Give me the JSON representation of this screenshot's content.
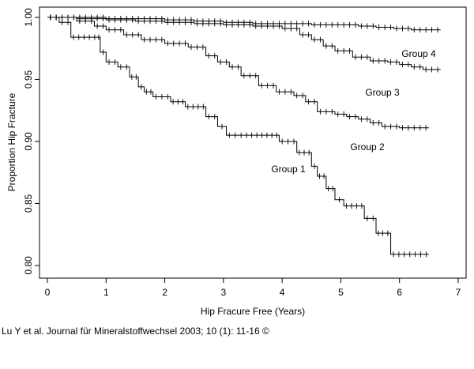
{
  "citation": "Lu Y et al. Journal für Mineralstoffwechsel 2003; 10 (1): 11-16 ©",
  "chart_data": {
    "type": "line",
    "step": true,
    "xlabel": "Hip Fracure Free (Years)",
    "ylabel": "Proportion Hip Fracture",
    "xlim": [
      0,
      7
    ],
    "ylim": [
      0.8,
      1.0
    ],
    "xticks": [
      "0",
      "1",
      "2",
      "3",
      "4",
      "5",
      "6",
      "7"
    ],
    "yticks": [
      "0.80",
      "0.85",
      "0.90",
      "0.95",
      "1.00"
    ],
    "grid": false,
    "series": [
      {
        "name": "Group 1",
        "x": [
          0,
          0.2,
          0.4,
          0.85,
          0.9,
          1.0,
          1.2,
          1.4,
          1.55,
          1.65,
          1.8,
          2.1,
          2.35,
          2.7,
          2.9,
          3.05,
          3.35,
          3.7,
          3.95,
          4.25,
          4.5,
          4.6,
          4.75,
          4.9,
          5.05,
          5.4,
          5.6,
          5.75,
          5.85,
          6.5
        ],
        "y": [
          1.0,
          0.996,
          0.984,
          0.984,
          0.972,
          0.964,
          0.96,
          0.952,
          0.944,
          0.94,
          0.936,
          0.932,
          0.928,
          0.92,
          0.912,
          0.905,
          0.905,
          0.905,
          0.9,
          0.891,
          0.88,
          0.872,
          0.862,
          0.853,
          0.848,
          0.838,
          0.826,
          0.826,
          0.809,
          0.809
        ]
      },
      {
        "name": "Group 2",
        "x": [
          0,
          0.5,
          0.8,
          1.0,
          1.3,
          1.6,
          2.0,
          2.4,
          2.7,
          2.9,
          3.1,
          3.3,
          3.6,
          3.9,
          4.2,
          4.4,
          4.6,
          4.9,
          5.1,
          5.3,
          5.5,
          5.7,
          6.0,
          6.5
        ],
        "y": [
          1.0,
          0.997,
          0.993,
          0.99,
          0.986,
          0.982,
          0.979,
          0.976,
          0.969,
          0.964,
          0.96,
          0.953,
          0.945,
          0.94,
          0.937,
          0.932,
          0.924,
          0.922,
          0.92,
          0.918,
          0.915,
          0.912,
          0.911,
          0.911
        ]
      },
      {
        "name": "Group 3",
        "x": [
          0,
          0.5,
          1.0,
          1.5,
          2.0,
          2.5,
          3.0,
          3.5,
          4.0,
          4.3,
          4.5,
          4.7,
          4.9,
          5.2,
          5.5,
          5.8,
          6.0,
          6.2,
          6.4,
          6.7
        ],
        "y": [
          1.0,
          0.999,
          0.998,
          0.997,
          0.996,
          0.995,
          0.994,
          0.993,
          0.991,
          0.986,
          0.982,
          0.977,
          0.973,
          0.968,
          0.965,
          0.964,
          0.962,
          0.96,
          0.958,
          0.958
        ]
      },
      {
        "name": "Group 4",
        "x": [
          0,
          0.5,
          1.0,
          1.5,
          2.0,
          2.5,
          3.0,
          3.5,
          4.0,
          4.5,
          5.0,
          5.3,
          5.6,
          5.9,
          6.2,
          6.7
        ],
        "y": [
          1.0,
          1.0,
          0.999,
          0.999,
          0.998,
          0.997,
          0.996,
          0.995,
          0.995,
          0.994,
          0.994,
          0.993,
          0.992,
          0.991,
          0.99,
          0.99
        ]
      }
    ]
  }
}
